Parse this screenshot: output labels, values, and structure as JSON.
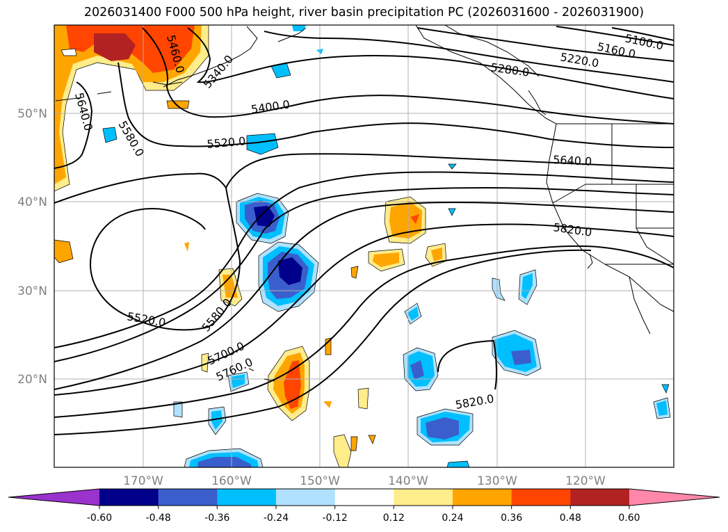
{
  "title": "2026031400 F000 500 hPa height, river basin precipitation PC (2026031600 - 2026031900)",
  "map": {
    "lat_labels": [
      "50°N",
      "40°N",
      "30°N",
      "20°N"
    ],
    "lon_labels": [
      "170°W",
      "160°W",
      "150°W",
      "140°W",
      "130°W",
      "120°W"
    ],
    "contour_labels": [
      "5460.0",
      "5340.0",
      "5640.0",
      "5580.0",
      "5400.0",
      "5520.0",
      "5280.0",
      "5220.0",
      "5160.0",
      "5100.0",
      "5640.0",
      "5820.0",
      "5520.0",
      "5580.0",
      "5700.0",
      "5760.0",
      "5820.0"
    ]
  },
  "colorbar": {
    "ticks": [
      "-0.60",
      "-0.48",
      "-0.36",
      "-0.24",
      "-0.12",
      "0.12",
      "0.24",
      "0.36",
      "0.48",
      "0.60"
    ],
    "colors": [
      "#9a32cd",
      "#00008b",
      "#3a5fcd",
      "#00bfff",
      "#b0e2ff",
      "#ffffff",
      "#ffec8b",
      "#ffa500",
      "#ff4500",
      "#b22222",
      "#ff88aa"
    ]
  },
  "colors": {
    "positive_light": "#ffec8b",
    "positive_mid": "#ffa500",
    "positive_strong": "#ff4500",
    "positive_max": "#b22222",
    "negative_light": "#b0e2ff",
    "negative_mid": "#00bfff",
    "negative_strong": "#3a5fcd",
    "negative_max": "#00008b",
    "gridline": "#b0b0b0",
    "axis_text": "#808080"
  }
}
